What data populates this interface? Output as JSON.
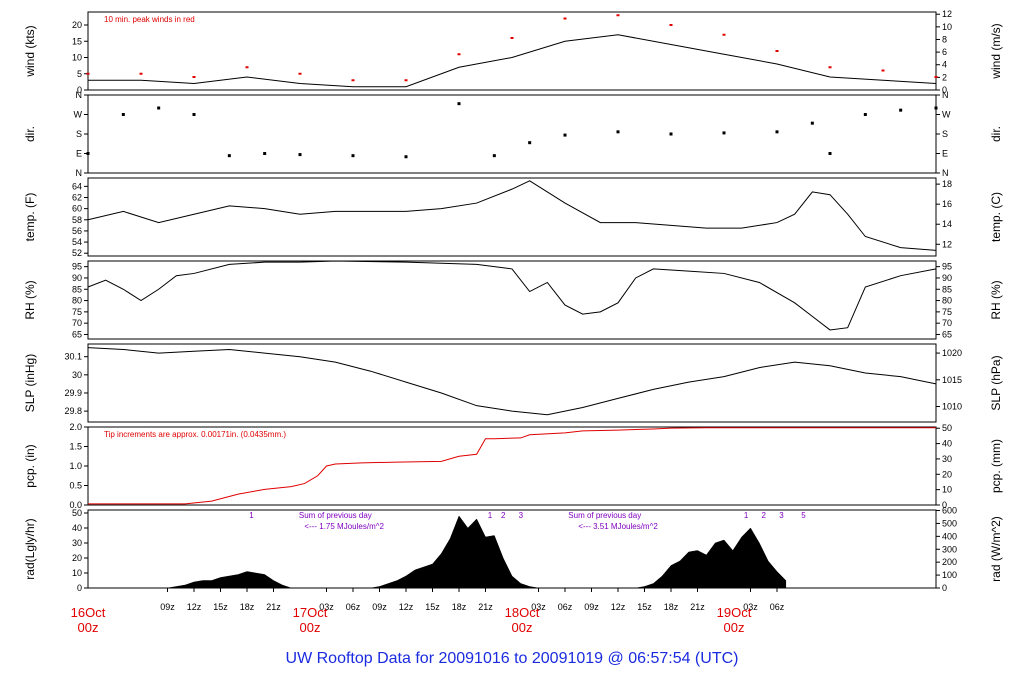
{
  "footer": {
    "title": "UW Rooftop Data for 20091016  to  20091019 @ 06:57:54  (UTC)"
  },
  "colors": {
    "trace": "#000000",
    "accent": "#e00000",
    "purple": "#8000c0",
    "title": "#1a2be0"
  },
  "chart_data": [
    {
      "type": "line",
      "id": "wind",
      "ylabel_left": "wind (kts)",
      "ylabel_right": "wind (m/s)",
      "ylim": [
        0,
        24
      ],
      "yticks_left": [
        0,
        5,
        10,
        15,
        20
      ],
      "ylim_right": [
        0,
        12.35
      ],
      "yticks_right": [
        0,
        2,
        4,
        6,
        8,
        10,
        12
      ],
      "annotation": "10 min. peak winds in red",
      "series": [
        {
          "role": "wind speed",
          "x": [
            0,
            6,
            12,
            18,
            24,
            30,
            36,
            42,
            48,
            54,
            60,
            66,
            72,
            78,
            84,
            90,
            96
          ],
          "y": [
            3,
            3,
            2,
            4,
            2,
            1,
            1,
            7,
            10,
            15,
            17,
            14,
            11,
            8,
            4,
            3,
            2
          ]
        },
        {
          "role": "10 min peak",
          "x": [
            0,
            6,
            12,
            18,
            24,
            30,
            36,
            42,
            48,
            54,
            60,
            66,
            72,
            78,
            84,
            90,
            96
          ],
          "y": [
            5,
            5,
            4,
            7,
            5,
            3,
            3,
            11,
            16,
            22,
            23,
            20,
            17,
            12,
            7,
            6,
            4
          ]
        }
      ]
    },
    {
      "type": "scatter",
      "id": "dir",
      "ylabel_left": "dir.",
      "ylabel_right": "dir.",
      "ylim": [
        0,
        360
      ],
      "yticks_left": [
        "N",
        "E",
        "S",
        "W",
        "N"
      ],
      "yticks_right": [
        "N",
        "E",
        "S",
        "W",
        "N"
      ],
      "series": [
        {
          "role": "wind direction (deg)",
          "x": [
            0,
            4,
            8,
            12,
            16,
            20,
            24,
            30,
            36,
            42,
            46,
            50,
            54,
            60,
            66,
            72,
            78,
            82,
            84,
            88,
            92,
            96
          ],
          "y": [
            90,
            270,
            300,
            270,
            80,
            90,
            85,
            80,
            75,
            320,
            80,
            140,
            175,
            190,
            180,
            185,
            190,
            230,
            90,
            270,
            290,
            300
          ]
        }
      ]
    },
    {
      "type": "line",
      "id": "temp",
      "ylabel_left": "temp. (F)",
      "ylabel_right": "temp. (C)",
      "ylim": [
        51.5,
        65.5
      ],
      "yticks_left": [
        52,
        54,
        56,
        58,
        60,
        62,
        64
      ],
      "ylim_right": [
        10.83,
        18.61
      ],
      "yticks_right": [
        12,
        14,
        16,
        18
      ],
      "series": [
        {
          "role": "temperature (F)",
          "x": [
            0,
            4,
            8,
            12,
            16,
            20,
            24,
            28,
            32,
            36,
            40,
            44,
            48,
            50,
            52,
            54,
            58,
            62,
            66,
            70,
            74,
            78,
            80,
            82,
            84,
            86,
            88,
            92,
            96
          ],
          "y": [
            58,
            59.5,
            57.5,
            59,
            60.5,
            60,
            59,
            59.5,
            59.5,
            59.5,
            60,
            61,
            63.5,
            65,
            63,
            61,
            57.5,
            57.5,
            57,
            56.5,
            56.5,
            57.5,
            59,
            63,
            62.5,
            59,
            55,
            53,
            52.5
          ]
        }
      ]
    },
    {
      "type": "line",
      "id": "rh",
      "ylabel_left": "RH (%)",
      "ylabel_right": "RH (%)",
      "ylim": [
        63,
        97.5
      ],
      "yticks_left": [
        65,
        70,
        75,
        80,
        85,
        90,
        95
      ],
      "yticks_right": [
        65,
        70,
        75,
        80,
        85,
        90,
        95
      ],
      "series": [
        {
          "role": "relative humidity (%)",
          "x": [
            0,
            2,
            4,
            6,
            8,
            10,
            12,
            16,
            20,
            24,
            28,
            36,
            44,
            48,
            50,
            52,
            54,
            56,
            58,
            60,
            62,
            64,
            68,
            72,
            76,
            80,
            82,
            84,
            86,
            88,
            92,
            96
          ],
          "y": [
            86,
            89,
            85,
            80,
            85,
            91,
            92,
            96,
            97,
            97,
            97.5,
            97,
            96,
            94,
            84,
            88,
            78,
            74,
            75,
            79,
            90,
            94,
            93,
            92,
            88,
            79,
            73,
            67,
            68,
            86,
            91,
            94
          ]
        }
      ]
    },
    {
      "type": "line",
      "id": "slp",
      "ylabel_left": "SLP (inHg)",
      "ylabel_right": "SLP (hPa)",
      "ylim": [
        29.74,
        30.17
      ],
      "yticks_left": [
        29.8,
        29.9,
        30.0,
        30.1
      ],
      "ylim_right": [
        1007.1,
        1021.7
      ],
      "yticks_right": [
        1010,
        1015,
        1020
      ],
      "series": [
        {
          "role": "sea level pressure (inHg)",
          "x": [
            0,
            4,
            8,
            12,
            16,
            20,
            24,
            28,
            32,
            36,
            40,
            44,
            48,
            52,
            56,
            60,
            64,
            68,
            72,
            76,
            80,
            84,
            88,
            92,
            96
          ],
          "y": [
            30.15,
            30.14,
            30.12,
            30.13,
            30.14,
            30.12,
            30.1,
            30.07,
            30.02,
            29.96,
            29.9,
            29.83,
            29.8,
            29.78,
            29.82,
            29.87,
            29.92,
            29.96,
            29.99,
            30.04,
            30.07,
            30.05,
            30.01,
            29.99,
            29.95
          ]
        }
      ]
    },
    {
      "type": "line",
      "id": "pcp",
      "ylabel_left": "pcp. (in)",
      "ylabel_right": "pcp. (mm)",
      "ylim": [
        0,
        2.0
      ],
      "yticks_left": [
        "0.0",
        "0.5",
        "1.0",
        "1.5",
        "2.0"
      ],
      "ylim_right": [
        0,
        50.8
      ],
      "yticks_right": [
        0,
        10,
        20,
        30,
        40,
        50
      ],
      "annotation": "Tip increments are approx. 0.00171in. (0.0435mm.)",
      "series": [
        {
          "role": "accumulated precipitation (in)",
          "x": [
            0,
            11,
            14,
            17,
            20,
            23,
            24.5,
            26,
            27,
            28,
            31,
            35,
            40,
            42,
            44,
            44.5,
            45,
            46,
            49,
            50,
            54,
            56,
            60,
            64,
            66,
            70,
            80,
            96
          ],
          "y": [
            0.03,
            0.03,
            0.1,
            0.28,
            0.4,
            0.47,
            0.55,
            0.75,
            1.0,
            1.05,
            1.08,
            1.1,
            1.12,
            1.25,
            1.3,
            1.5,
            1.7,
            1.7,
            1.72,
            1.8,
            1.85,
            1.9,
            1.92,
            1.95,
            1.97,
            1.98,
            1.98,
            1.98
          ]
        }
      ]
    },
    {
      "type": "area",
      "id": "rad",
      "ylabel_left": "rad(Lgly/hr)",
      "ylabel_right": "rad (W/m^2)",
      "ylim": [
        0,
        52
      ],
      "yticks_left": [
        0,
        10,
        20,
        30,
        40,
        50
      ],
      "ylim_right": [
        0,
        604
      ],
      "yticks_right": [
        0,
        100,
        200,
        300,
        400,
        500,
        600
      ],
      "annotations": [
        {
          "text": "1",
          "x": 18.5
        },
        {
          "text": "Sum of previous day",
          "x": 28
        },
        {
          "text": "<--- 1.75 MJoules/m^2",
          "x": 29
        },
        {
          "text": "1",
          "x": 45.5
        },
        {
          "text": "2",
          "x": 47
        },
        {
          "text": "3",
          "x": 49
        },
        {
          "text": "Sum of previous day",
          "x": 58.5
        },
        {
          "text": "<--- 3.51 MJoules/m^2",
          "x": 60
        },
        {
          "text": "1",
          "x": 74.5
        },
        {
          "text": "2",
          "x": 76.5
        },
        {
          "text": "3",
          "x": 78.5
        },
        {
          "text": "5",
          "x": 81
        }
      ],
      "series": [
        {
          "role": "solar radiation (Langley/hr)",
          "x": [
            7,
            9,
            10,
            11,
            12,
            13,
            14,
            15,
            16,
            17,
            18,
            19,
            20,
            21,
            22,
            23,
            30,
            31,
            32,
            33,
            34,
            35,
            36,
            37,
            38,
            39,
            40,
            41,
            42,
            43,
            44,
            45,
            46,
            47,
            48,
            49,
            50,
            51,
            52,
            53,
            54,
            55,
            56,
            57,
            58,
            62,
            63,
            64,
            65,
            66,
            67,
            68,
            69,
            70,
            71,
            72,
            73,
            74,
            75,
            76,
            77,
            78,
            79
          ],
          "y": [
            0,
            0,
            1,
            2,
            4,
            5,
            5,
            7,
            8,
            9,
            11,
            10,
            9,
            5,
            2,
            0,
            0,
            0,
            0,
            1,
            3,
            5,
            8,
            12,
            14,
            16,
            23,
            33,
            48,
            40,
            46,
            34,
            35,
            20,
            8,
            3,
            1,
            0,
            0,
            0,
            0,
            0,
            0,
            0,
            0,
            0,
            1,
            3,
            8,
            15,
            18,
            24,
            25,
            22,
            30,
            32,
            25,
            34,
            40,
            30,
            18,
            11,
            5
          ]
        }
      ]
    }
  ],
  "x_axis": {
    "x_range_hours": [
      0,
      96
    ],
    "tick_labels": [
      "09z",
      "12z",
      "15z",
      "18z",
      "21z",
      "03z",
      "06z",
      "09z",
      "12z",
      "15z",
      "18z",
      "21z",
      "03z",
      "06z",
      "09z",
      "12z",
      "15z",
      "18z",
      "21z",
      "03z",
      "06z"
    ],
    "tick_hours": [
      9,
      12,
      15,
      18,
      21,
      27,
      30,
      33,
      36,
      39,
      42,
      45,
      51,
      54,
      57,
      60,
      63,
      66,
      69,
      75,
      78
    ],
    "day_labels": [
      {
        "date": "16Oct",
        "time": "00z",
        "hour": 0
      },
      {
        "date": "17Oct",
        "time": "00z",
        "hour": 24
      },
      {
        "date": "18Oct",
        "time": "00z",
        "hour": 48
      },
      {
        "date": "19Oct",
        "time": "00z",
        "hour": 72
      }
    ]
  }
}
